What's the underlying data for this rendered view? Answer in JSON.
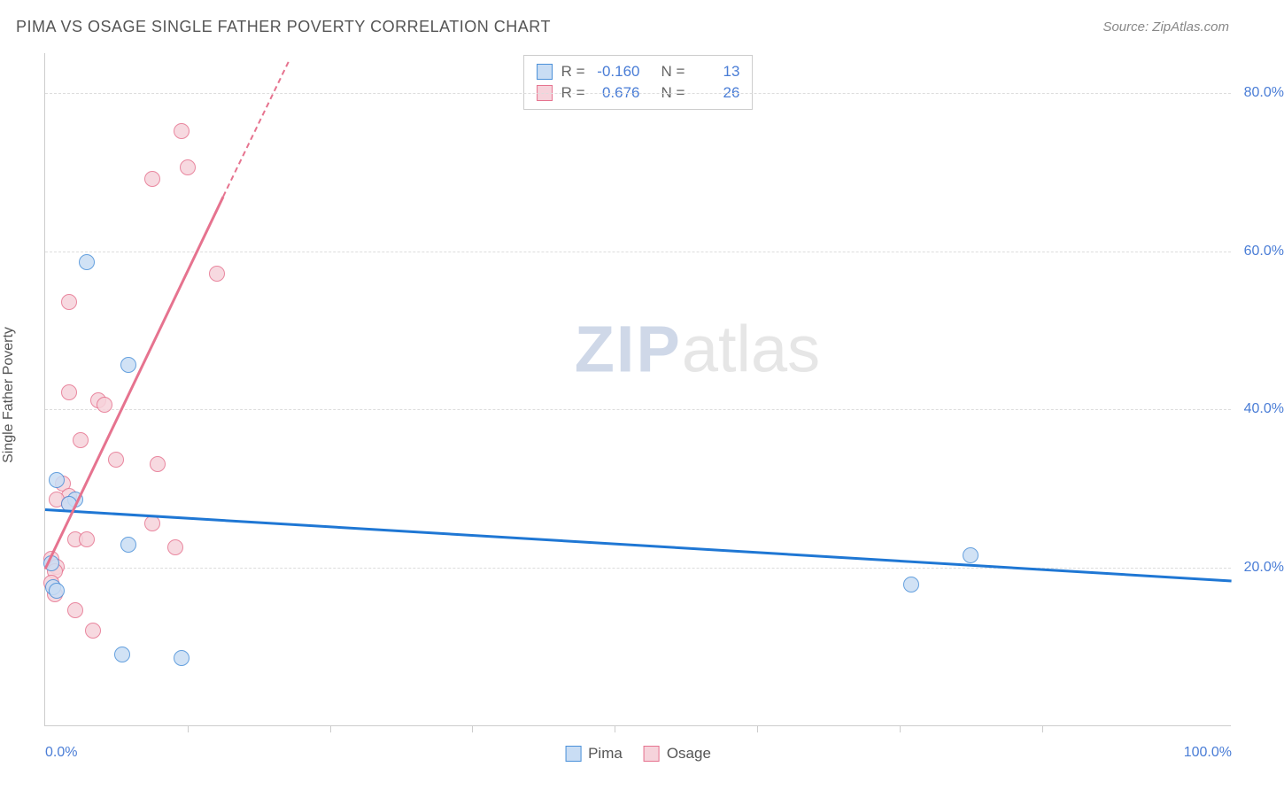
{
  "title": "PIMA VS OSAGE SINGLE FATHER POVERTY CORRELATION CHART",
  "source": "Source: ZipAtlas.com",
  "ylabel": "Single Father Poverty",
  "watermark": {
    "zip": "ZIP",
    "atlas": "atlas"
  },
  "chart": {
    "type": "scatter",
    "xlim": [
      0,
      100
    ],
    "ylim": [
      0,
      85
    ],
    "ytick_values": [
      20,
      40,
      60,
      80
    ],
    "ytick_labels": [
      "20.0%",
      "40.0%",
      "60.0%",
      "80.0%"
    ],
    "xtick_values": [
      0,
      100
    ],
    "xtick_labels": [
      "0.0%",
      "100.0%"
    ],
    "xtick_minor": [
      12,
      24,
      36,
      48,
      60,
      72,
      84
    ],
    "background_color": "#ffffff",
    "grid_color": "#dddddd",
    "axis_color": "#cccccc",
    "tick_label_color": "#4a7dd6",
    "series": {
      "pima": {
        "label": "Pima",
        "R": "-0.160",
        "N": "13",
        "marker_fill": "#c9ddf4",
        "marker_stroke": "#4a90d9",
        "line_color": "#1f77d4",
        "marker_radius": 9,
        "regression": {
          "x1": 0,
          "y1": 27.5,
          "x2": 100,
          "y2": 18.5
        },
        "points": [
          {
            "x": 3.5,
            "y": 58.5
          },
          {
            "x": 7.0,
            "y": 45.5
          },
          {
            "x": 1.0,
            "y": 31.0
          },
          {
            "x": 2.5,
            "y": 28.5
          },
          {
            "x": 2.0,
            "y": 28.0
          },
          {
            "x": 7.0,
            "y": 22.8
          },
          {
            "x": 78.0,
            "y": 21.5
          },
          {
            "x": 0.5,
            "y": 20.5
          },
          {
            "x": 73.0,
            "y": 17.8
          },
          {
            "x": 0.7,
            "y": 17.5
          },
          {
            "x": 1.0,
            "y": 17.0
          },
          {
            "x": 6.5,
            "y": 9.0
          },
          {
            "x": 11.5,
            "y": 8.5
          }
        ]
      },
      "osage": {
        "label": "Osage",
        "R": "0.676",
        "N": "26",
        "marker_fill": "#f6d3db",
        "marker_stroke": "#e6738f",
        "line_color": "#e6738f",
        "marker_radius": 9,
        "regression": {
          "x1": 0,
          "y1": 20.0,
          "x2": 15.0,
          "y2": 67.0
        },
        "regression_ext": {
          "x1": 15.0,
          "y1": 67.0,
          "x2": 20.5,
          "y2": 84.0
        },
        "points": [
          {
            "x": 11.5,
            "y": 75.0
          },
          {
            "x": 12.0,
            "y": 70.5
          },
          {
            "x": 9.0,
            "y": 69.0
          },
          {
            "x": 14.5,
            "y": 57.0
          },
          {
            "x": 2.0,
            "y": 53.5
          },
          {
            "x": 2.0,
            "y": 42.0
          },
          {
            "x": 4.5,
            "y": 41.0
          },
          {
            "x": 5.0,
            "y": 40.5
          },
          {
            "x": 3.0,
            "y": 36.0
          },
          {
            "x": 6.0,
            "y": 33.5
          },
          {
            "x": 9.5,
            "y": 33.0
          },
          {
            "x": 1.5,
            "y": 30.5
          },
          {
            "x": 2.0,
            "y": 29.0
          },
          {
            "x": 1.0,
            "y": 28.5
          },
          {
            "x": 2.0,
            "y": 28.0
          },
          {
            "x": 9.0,
            "y": 25.5
          },
          {
            "x": 2.5,
            "y": 23.5
          },
          {
            "x": 3.5,
            "y": 23.5
          },
          {
            "x": 11.0,
            "y": 22.5
          },
          {
            "x": 0.5,
            "y": 21.0
          },
          {
            "x": 1.0,
            "y": 20.0
          },
          {
            "x": 0.8,
            "y": 19.5
          },
          {
            "x": 0.5,
            "y": 18.0
          },
          {
            "x": 2.5,
            "y": 14.5
          },
          {
            "x": 4.0,
            "y": 12.0
          },
          {
            "x": 0.8,
            "y": 16.5
          }
        ]
      }
    }
  },
  "legend_top": {
    "rows": [
      {
        "series": "pima"
      },
      {
        "series": "osage"
      }
    ]
  },
  "legend_bottom": [
    {
      "series": "pima"
    },
    {
      "series": "osage"
    }
  ]
}
